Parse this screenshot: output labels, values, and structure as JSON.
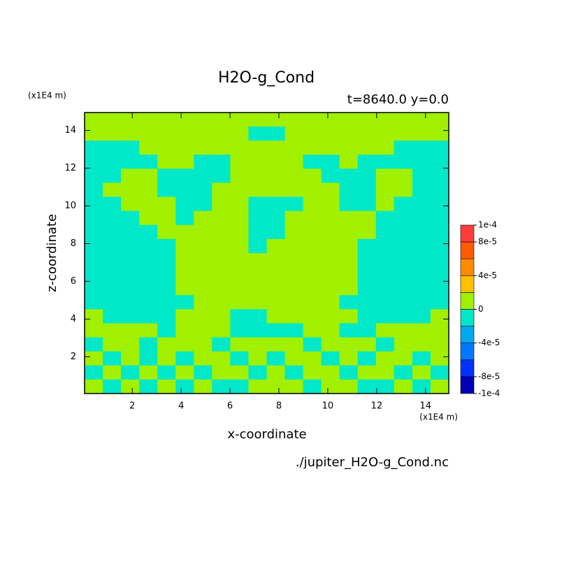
{
  "chart_data": {
    "type": "contour",
    "title": "H2O-g_Cond",
    "subtitle": "t=8640.0 y=0.0",
    "x_label": "x-coordinate",
    "y_label": "z-coordinate",
    "x_unit": "(x1E4 m)",
    "y_unit": "(x1E4 m)",
    "source": "./jupiter_H2O-g_Cond.nc",
    "xlim": [
      0.05,
      14.95
    ],
    "ylim": [
      0.05,
      14.95
    ],
    "xticks": [
      2,
      4,
      6,
      8,
      10,
      12,
      14
    ],
    "yticks": [
      2,
      4,
      6,
      8,
      10,
      12,
      14
    ],
    "colorbar": {
      "levels": [
        -0.0001,
        -8e-05,
        -6e-05,
        -4e-05,
        -2e-05,
        0,
        2e-05,
        4e-05,
        6e-05,
        8e-05,
        0.0001
      ],
      "colors": [
        "#0000b4",
        "#0032ff",
        "#0078ff",
        "#00a8f0",
        "#00e8c8",
        "#a0f000",
        "#ffc000",
        "#ff8c00",
        "#ff5a00",
        "#ff3c3c"
      ],
      "ticks": [
        {
          "value": 0.0001,
          "label": "1e-4"
        },
        {
          "value": 8e-05,
          "label": "8e-5"
        },
        {
          "value": 4e-05,
          "label": "4e-5"
        },
        0,
        {
          "value": -4e-05,
          "label": "-4e-5"
        },
        {
          "value": -8e-05,
          "label": "-8e-5"
        },
        {
          "value": -0.0001,
          "label": "-1e-4"
        }
      ]
    },
    "z": [
      [
        1e-05,
        1e-05,
        1e-05,
        1e-05,
        1e-05,
        1e-05,
        1e-05,
        1e-05,
        1e-05,
        1e-05,
        1e-05,
        1e-05,
        1e-05,
        1e-05,
        1e-05,
        1e-05,
        1e-05,
        1e-05,
        1e-05,
        1e-05
      ],
      [
        1e-05,
        1e-05,
        1e-05,
        1e-05,
        1e-05,
        1e-05,
        1e-05,
        1e-05,
        1e-05,
        -1e-05,
        -1e-05,
        1e-05,
        1e-05,
        1e-05,
        1e-05,
        1e-05,
        1e-05,
        1e-05,
        1e-05,
        1e-05
      ],
      [
        -1e-05,
        -1e-05,
        -1e-05,
        1e-05,
        1e-05,
        1e-05,
        1e-05,
        1e-05,
        1e-05,
        1e-05,
        1e-05,
        1e-05,
        1e-05,
        1e-05,
        1e-05,
        1e-05,
        1e-05,
        -1e-05,
        -1e-05,
        -1e-05
      ],
      [
        -1e-05,
        -1e-05,
        -1e-05,
        -1e-05,
        1e-05,
        1e-05,
        -1e-05,
        -1e-05,
        1e-05,
        1e-05,
        1e-05,
        1e-05,
        -1e-05,
        -1e-05,
        1e-05,
        -1e-05,
        -1e-05,
        -1e-05,
        -1e-05,
        -1e-05
      ],
      [
        -1e-05,
        -1e-05,
        1e-05,
        1e-05,
        -1e-05,
        -1e-05,
        -1e-05,
        -1e-05,
        1e-05,
        1e-05,
        1e-05,
        1e-05,
        1e-05,
        -1e-05,
        -1e-05,
        -1e-05,
        1e-05,
        1e-05,
        -1e-05,
        -1e-05
      ],
      [
        -1e-05,
        1e-05,
        1e-05,
        1e-05,
        -1e-05,
        -1e-05,
        -1e-05,
        1e-05,
        1e-05,
        1e-05,
        1e-05,
        1e-05,
        1e-05,
        1e-05,
        -1e-05,
        -1e-05,
        1e-05,
        1e-05,
        -1e-05,
        -1e-05
      ],
      [
        -1e-05,
        -1e-05,
        1e-05,
        1e-05,
        1e-05,
        -1e-05,
        -1e-05,
        1e-05,
        1e-05,
        -1e-05,
        -1e-05,
        -1e-05,
        1e-05,
        1e-05,
        -1e-05,
        -1e-05,
        1e-05,
        -1e-05,
        -1e-05,
        -1e-05
      ],
      [
        -1e-05,
        -1e-05,
        -1e-05,
        1e-05,
        1e-05,
        -1e-05,
        1e-05,
        1e-05,
        1e-05,
        -1e-05,
        -1e-05,
        1e-05,
        1e-05,
        1e-05,
        1e-05,
        1e-05,
        -1e-05,
        -1e-05,
        -1e-05,
        -1e-05
      ],
      [
        -1e-05,
        -1e-05,
        -1e-05,
        -1e-05,
        1e-05,
        1e-05,
        1e-05,
        1e-05,
        1e-05,
        -1e-05,
        -1e-05,
        1e-05,
        1e-05,
        1e-05,
        1e-05,
        1e-05,
        -1e-05,
        -1e-05,
        -1e-05,
        -1e-05
      ],
      [
        -1e-05,
        -1e-05,
        -1e-05,
        -1e-05,
        -1e-05,
        1e-05,
        1e-05,
        1e-05,
        1e-05,
        -1e-05,
        1e-05,
        1e-05,
        1e-05,
        1e-05,
        1e-05,
        -1e-05,
        -1e-05,
        -1e-05,
        -1e-05,
        -1e-05
      ],
      [
        -1e-05,
        -1e-05,
        -1e-05,
        -1e-05,
        -1e-05,
        1e-05,
        1e-05,
        1e-05,
        1e-05,
        1e-05,
        1e-05,
        1e-05,
        1e-05,
        1e-05,
        1e-05,
        -1e-05,
        -1e-05,
        -1e-05,
        -1e-05,
        -1e-05
      ],
      [
        -1e-05,
        -1e-05,
        -1e-05,
        -1e-05,
        -1e-05,
        1e-05,
        1e-05,
        1e-05,
        1e-05,
        1e-05,
        1e-05,
        1e-05,
        1e-05,
        1e-05,
        1e-05,
        -1e-05,
        -1e-05,
        -1e-05,
        -1e-05,
        -1e-05
      ],
      [
        -1e-05,
        -1e-05,
        -1e-05,
        -1e-05,
        -1e-05,
        1e-05,
        1e-05,
        1e-05,
        1e-05,
        1e-05,
        1e-05,
        1e-05,
        1e-05,
        1e-05,
        1e-05,
        -1e-05,
        -1e-05,
        -1e-05,
        -1e-05,
        -1e-05
      ],
      [
        -1e-05,
        -1e-05,
        -1e-05,
        -1e-05,
        -1e-05,
        -1e-05,
        1e-05,
        1e-05,
        1e-05,
        1e-05,
        1e-05,
        1e-05,
        1e-05,
        1e-05,
        -1e-05,
        -1e-05,
        -1e-05,
        -1e-05,
        -1e-05,
        -1e-05
      ],
      [
        1e-05,
        -1e-05,
        -1e-05,
        -1e-05,
        -1e-05,
        1e-05,
        1e-05,
        1e-05,
        -1e-05,
        -1e-05,
        1e-05,
        1e-05,
        1e-05,
        1e-05,
        1e-05,
        -1e-05,
        -1e-05,
        -1e-05,
        -1e-05,
        1e-05
      ],
      [
        1e-05,
        1e-05,
        1e-05,
        1e-05,
        -1e-05,
        1e-05,
        1e-05,
        1e-05,
        -1e-05,
        -1e-05,
        -1e-05,
        -1e-05,
        1e-05,
        1e-05,
        -1e-05,
        -1e-05,
        1e-05,
        1e-05,
        1e-05,
        1e-05
      ],
      [
        -1e-05,
        1e-05,
        1e-05,
        -1e-05,
        1e-05,
        1e-05,
        1e-05,
        -1e-05,
        1e-05,
        1e-05,
        1e-05,
        1e-05,
        -1e-05,
        1e-05,
        1e-05,
        1e-05,
        -1e-05,
        1e-05,
        1e-05,
        1e-05
      ],
      [
        1e-05,
        -1e-05,
        1e-05,
        -1e-05,
        1e-05,
        -1e-05,
        1e-05,
        1e-05,
        -1e-05,
        1e-05,
        -1e-05,
        1e-05,
        1e-05,
        -1e-05,
        1e-05,
        -1e-05,
        1e-05,
        1e-05,
        -1e-05,
        1e-05
      ],
      [
        -1e-05,
        1e-05,
        -1e-05,
        1e-05,
        -1e-05,
        1e-05,
        -1e-05,
        1e-05,
        1e-05,
        -1e-05,
        1e-05,
        -1e-05,
        1e-05,
        1e-05,
        -1e-05,
        1e-05,
        1e-05,
        -1e-05,
        1e-05,
        -1e-05
      ],
      [
        1e-05,
        -1e-05,
        1e-05,
        -1e-05,
        1e-05,
        -1e-05,
        1e-05,
        -1e-05,
        -1e-05,
        1e-05,
        1e-05,
        1e-05,
        -1e-05,
        1e-05,
        1e-05,
        -1e-05,
        -1e-05,
        1e-05,
        -1e-05,
        1e-05
      ]
    ]
  }
}
